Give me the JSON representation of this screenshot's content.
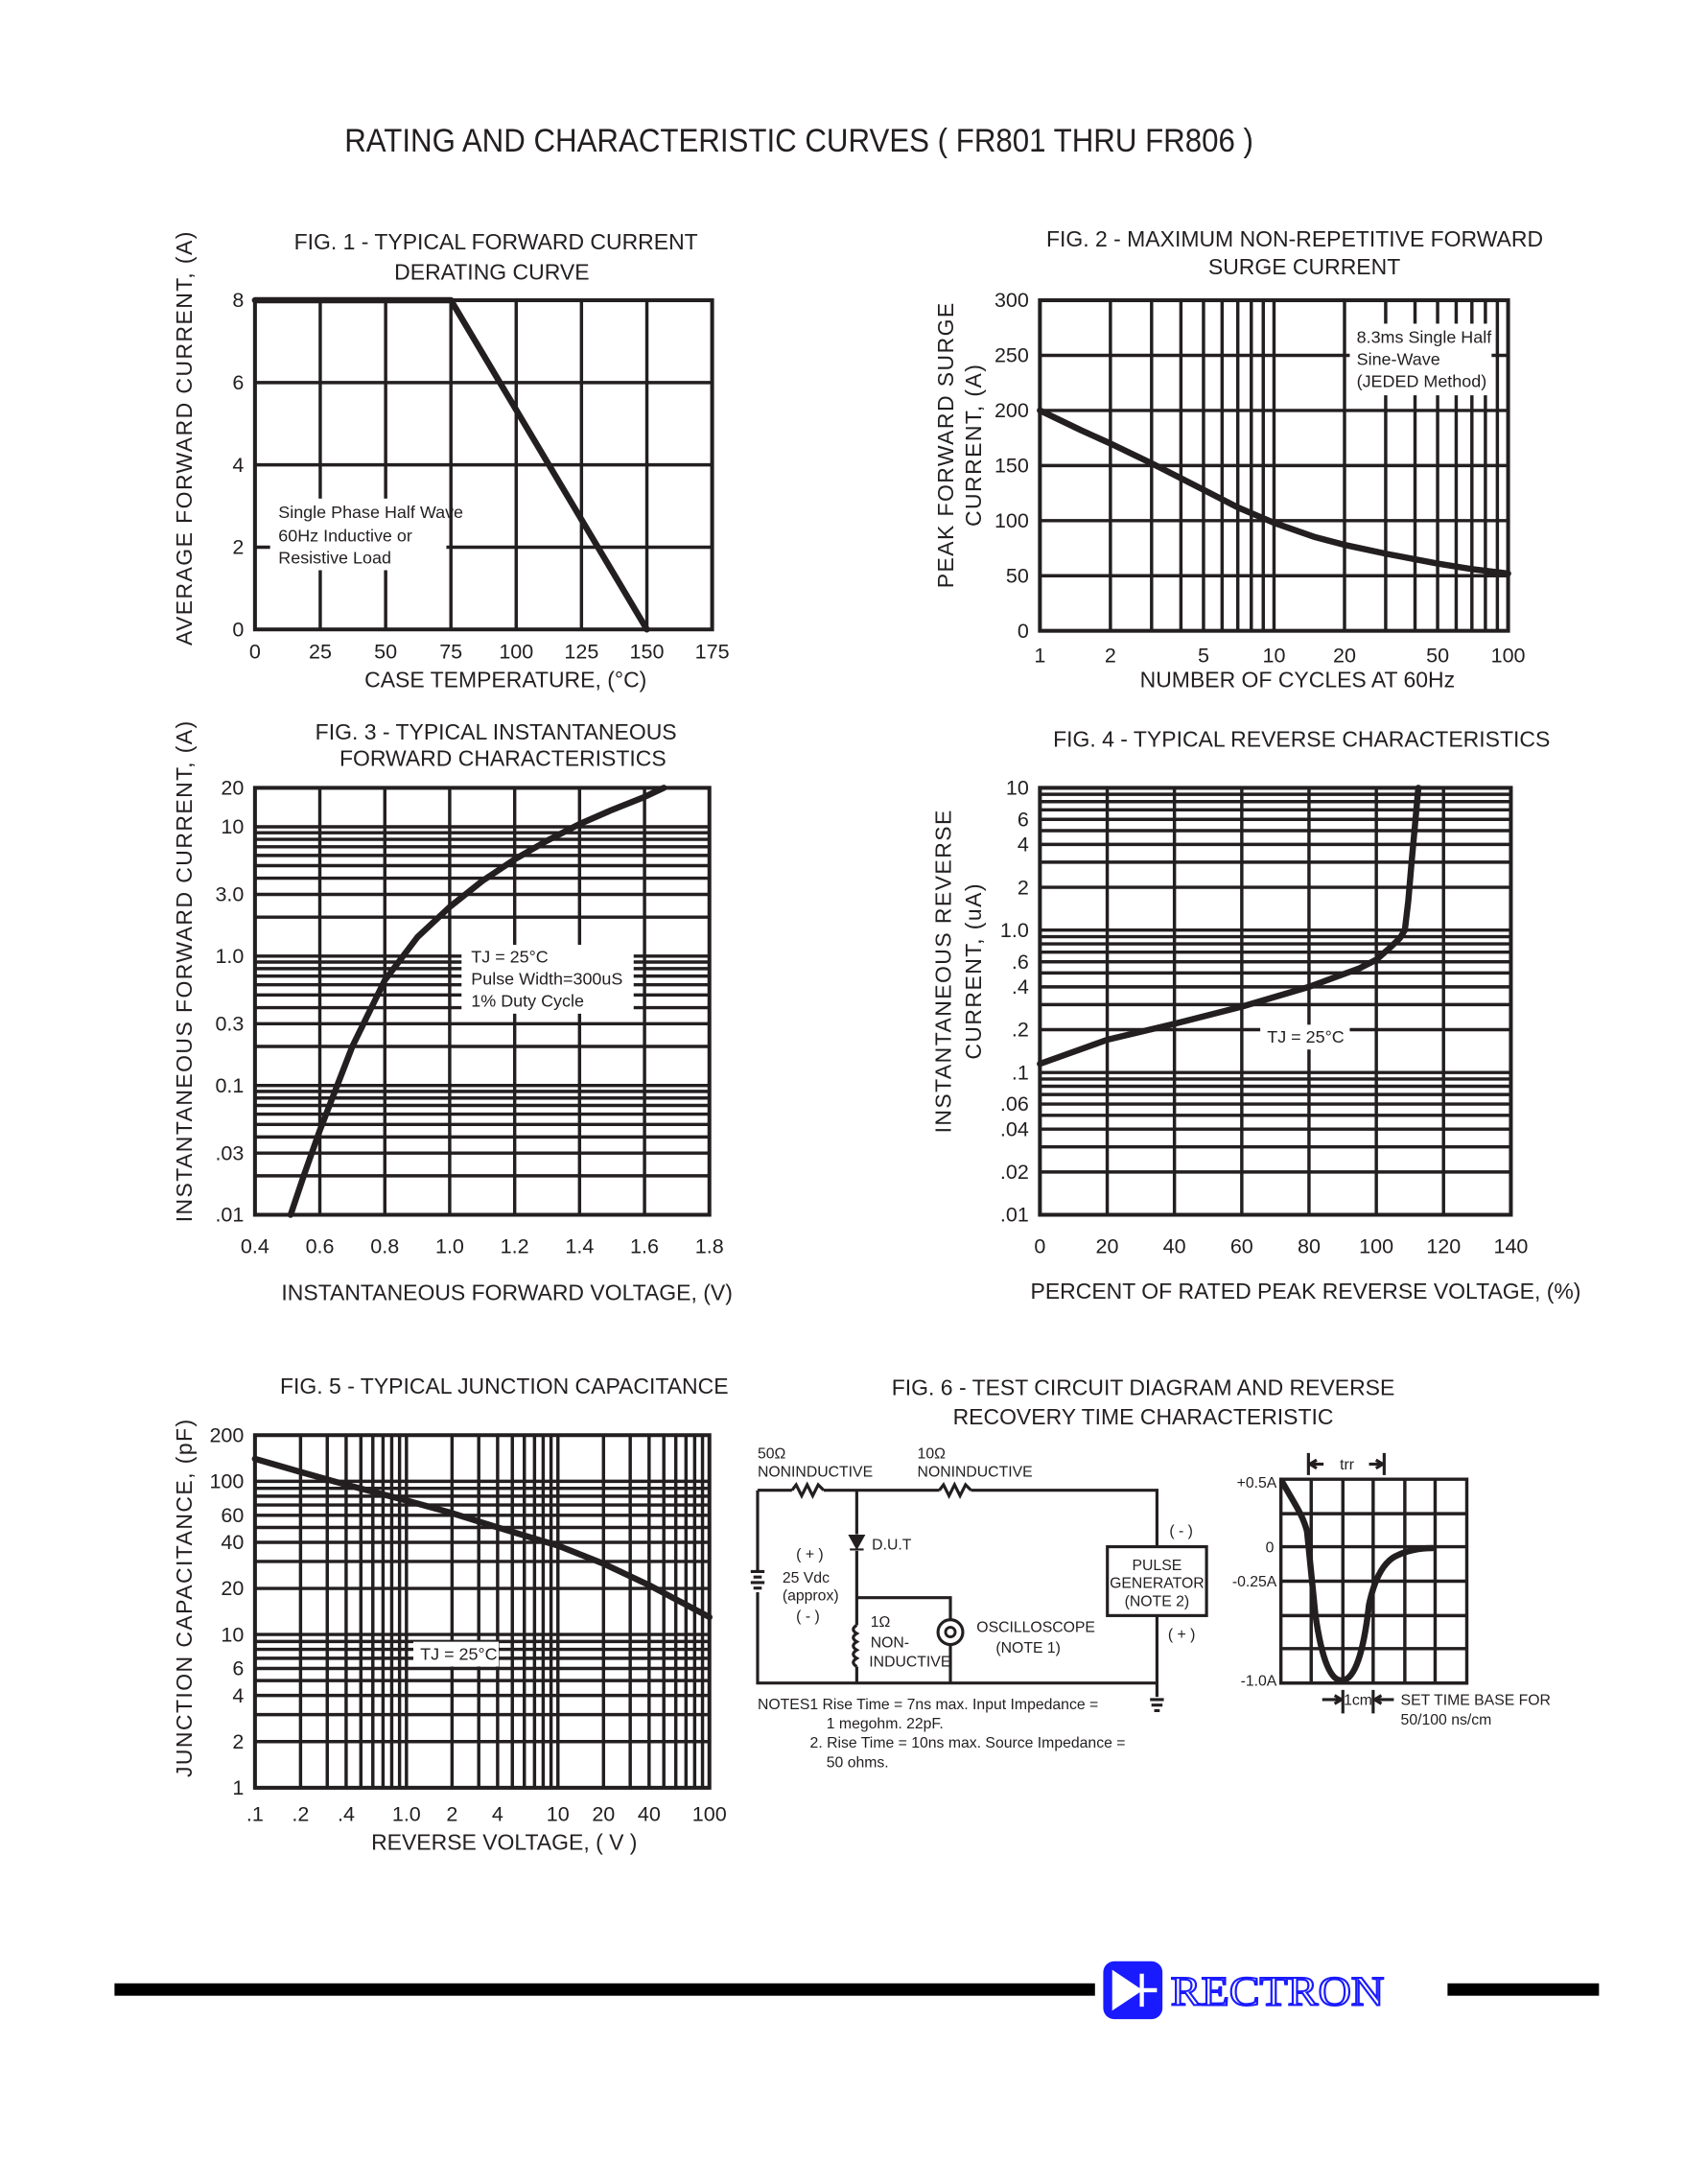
{
  "page_title": "RATING AND CHARACTERISTIC CURVES ( FR801 THRU FR806 )",
  "chart_data": [
    {
      "id": "fig1",
      "type": "line",
      "title": [
        "FIG. 1 - TYPICAL FORWARD CURRENT",
        "DERATING CURVE"
      ],
      "xlabel": "CASE TEMPERATURE, (°C)",
      "ylabel": [
        "AVERAGE FORWARD CURRENT, (A)"
      ],
      "xscale": "linear",
      "yscale": "linear",
      "xlim": [
        0,
        175
      ],
      "ylim": [
        0,
        8
      ],
      "xticks": [
        0,
        25,
        50,
        75,
        100,
        125,
        150,
        175
      ],
      "xtick_labels": [
        "0",
        "25",
        "50",
        "75",
        "100",
        "125",
        "150",
        "175"
      ],
      "yticks": [
        0,
        2,
        4,
        6,
        8
      ],
      "ytick_labels": [
        "0",
        "2",
        "4",
        "6",
        "8"
      ],
      "grid": true,
      "annotation": [
        "Single Phase Half Wave",
        "60Hz Inductive or",
        "Resistive Load"
      ],
      "series": [
        {
          "x": [
            0,
            75,
            150
          ],
          "y": [
            8,
            8,
            0
          ]
        }
      ]
    },
    {
      "id": "fig2",
      "type": "line",
      "title": [
        "FIG. 2 - MAXIMUM NON-REPETITIVE FORWARD",
        "SURGE CURRENT"
      ],
      "xlabel": "NUMBER OF CYCLES AT 60Hz",
      "ylabel": [
        "PEAK FORWARD SURGE",
        "CURRENT, (A)"
      ],
      "xscale": "log",
      "yscale": "linear",
      "xlim": [
        1,
        100
      ],
      "ylim": [
        0,
        300
      ],
      "xticks": [
        1,
        2,
        5,
        10,
        20,
        50,
        100
      ],
      "xtick_labels": [
        "1",
        "2",
        "5",
        "10",
        "20",
        "50",
        "100"
      ],
      "yticks": [
        0,
        50,
        100,
        150,
        200,
        250,
        300
      ],
      "ytick_labels": [
        "0",
        "50",
        "100",
        "150",
        "200",
        "250",
        "300"
      ],
      "grid": true,
      "annotation": [
        "8.3ms Single Half",
        "Sine-Wave",
        "(JEDED Method)"
      ],
      "series": [
        {
          "x": [
            1,
            1.5,
            2,
            3,
            5,
            7,
            10,
            15,
            20,
            30,
            50,
            70,
            100
          ],
          "y": [
            200,
            182,
            170,
            152,
            128,
            112,
            98,
            85,
            78,
            70,
            61,
            56,
            52
          ]
        }
      ]
    },
    {
      "id": "fig3",
      "type": "line",
      "title": [
        "FIG. 3 - TYPICAL INSTANTANEOUS",
        "FORWARD CHARACTERISTICS"
      ],
      "xlabel": "INSTANTANEOUS FORWARD VOLTAGE, (V)",
      "ylabel": [
        "INSTANTANEOUS FORWARD CURRENT, (A)"
      ],
      "xscale": "linear",
      "yscale": "log",
      "xlim": [
        0.4,
        1.8
      ],
      "ylim": [
        0.01,
        20
      ],
      "xticks": [
        0.4,
        0.6,
        0.8,
        1.0,
        1.2,
        1.4,
        1.6,
        1.8
      ],
      "xtick_labels": [
        "0.4",
        "0.6",
        "0.8",
        "1.0",
        "1.2",
        "1.4",
        "1.6",
        "1.8"
      ],
      "yticks": [
        20,
        10,
        3,
        1,
        0.3,
        0.1,
        0.03,
        0.01
      ],
      "ytick_labels": [
        "20",
        "10",
        "3.0",
        "1.0",
        "0.3",
        "0.1",
        ".03",
        ".01"
      ],
      "grid": true,
      "annotation": [
        "TJ = 25°C",
        "Pulse Width=300uS",
        "1% Duty Cycle"
      ],
      "series": [
        {
          "x": [
            0.51,
            0.55,
            0.6,
            0.7,
            0.8,
            0.9,
            1.0,
            1.1,
            1.2,
            1.3,
            1.4,
            1.5,
            1.6,
            1.66
          ],
          "y": [
            0.01,
            0.02,
            0.045,
            0.2,
            0.65,
            1.4,
            2.4,
            3.8,
            5.6,
            7.8,
            10.5,
            13.5,
            17,
            20
          ]
        }
      ]
    },
    {
      "id": "fig4",
      "type": "line",
      "title": [
        "FIG. 4 - TYPICAL REVERSE CHARACTERISTICS"
      ],
      "xlabel": "PERCENT OF RATED PEAK REVERSE VOLTAGE, (%)",
      "ylabel": [
        "INSTANTANEOUS REVERSE",
        "CURRENT, (uA)"
      ],
      "xscale": "linear",
      "yscale": "log",
      "xlim": [
        0,
        140
      ],
      "ylim": [
        0.01,
        10
      ],
      "xticks": [
        0,
        20,
        40,
        60,
        80,
        100,
        120,
        140
      ],
      "xtick_labels": [
        "0",
        "20",
        "40",
        "60",
        "80",
        "100",
        "120",
        "140"
      ],
      "yticks": [
        10,
        6,
        4,
        2,
        1,
        0.6,
        0.4,
        0.2,
        0.1,
        0.06,
        0.04,
        0.02,
        0.01
      ],
      "ytick_labels": [
        "10",
        "6",
        "4",
        "2",
        "1.0",
        ".6",
        ".4",
        ".2",
        ".1",
        ".06",
        ".04",
        ".02",
        ".01"
      ],
      "grid": true,
      "annotation": [
        "TJ = 25°C"
      ],
      "series": [
        {
          "x": [
            0,
            20,
            40,
            60,
            80,
            95,
            100,
            104,
            107,
            108.5,
            109.5,
            110.5,
            111.5,
            112.5
          ],
          "y": [
            0.115,
            0.17,
            0.22,
            0.29,
            0.4,
            0.54,
            0.62,
            0.75,
            0.88,
            1.0,
            1.6,
            3,
            5.5,
            10
          ]
        }
      ]
    },
    {
      "id": "fig5",
      "type": "line",
      "title": [
        "FIG. 5 - TYPICAL JUNCTION CAPACITANCE"
      ],
      "xlabel": "REVERSE VOLTAGE, ( V )",
      "ylabel": [
        "JUNCTION CAPACITANCE, (pF)"
      ],
      "xscale": "log",
      "yscale": "log",
      "xlim": [
        0.1,
        100
      ],
      "ylim": [
        1,
        200
      ],
      "xticks": [
        0.1,
        0.2,
        0.4,
        1,
        2,
        4,
        10,
        20,
        40,
        100
      ],
      "xtick_labels": [
        ".1",
        ".2",
        ".4",
        "1.0",
        "2",
        "4",
        "10",
        "20",
        "40",
        "100"
      ],
      "yticks": [
        200,
        100,
        60,
        40,
        20,
        10,
        6,
        4,
        2,
        1
      ],
      "ytick_labels": [
        "200",
        "100",
        "60",
        "40",
        "20",
        "10",
        "6",
        "4",
        "2",
        "1"
      ],
      "grid": true,
      "annotation": [
        "TJ = 25°C"
      ],
      "series": [
        {
          "x": [
            0.1,
            0.2,
            0.4,
            1,
            2,
            4,
            10,
            20,
            40,
            100
          ],
          "y": [
            140,
            115,
            95,
            75,
            62,
            50,
            38,
            29,
            21,
            13
          ]
        }
      ]
    }
  ],
  "fig6": {
    "title": [
      "FIG. 6 - TEST CIRCUIT DIAGRAM  AND REVERSE",
      "RECOVERY TIME CHARACTERISTIC"
    ],
    "r50": [
      "50Ω",
      "NONINDUCTIVE"
    ],
    "r10": [
      "10Ω",
      "NONINDUCTIVE"
    ],
    "dut": "D.U.T",
    "battery": [
      "( + )",
      "25 Vdc",
      "(approx)",
      "( - )"
    ],
    "r1": [
      "1Ω",
      "NON-",
      "INDUCTIVE"
    ],
    "scope": [
      "OSCILLOSCOPE",
      "(NOTE 1)"
    ],
    "pulse_gen": [
      "PULSE",
      "GENERATOR",
      "(NOTE 2)"
    ],
    "pg_minus": "( - )",
    "pg_plus": "( + )",
    "notes": [
      "NOTES1  Rise Time = 7ns max. Input Impedance =",
      "1 megohm. 22pF.",
      "2. Rise Time = 10ns max. Source Impedance =",
      "50 ohms."
    ],
    "wave_labels": [
      "+0.5A",
      "0",
      "-0.25A",
      "-1.0A"
    ],
    "trr": "trr",
    "cm": "1cm",
    "timebase": [
      "SET TIME BASE FOR",
      "50/100 ns/cm"
    ]
  },
  "footer": {
    "logo_text": "RECTRON",
    "logo_color": "#1a1aff"
  }
}
